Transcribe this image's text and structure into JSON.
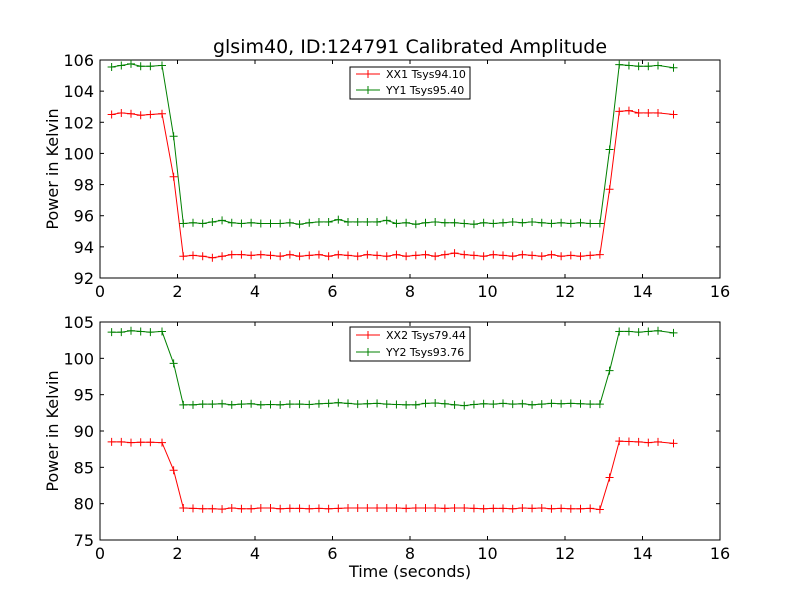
{
  "figure": {
    "background": "#ffffff"
  },
  "chart_data": [
    {
      "type": "line",
      "title": "glsim40, ID:124791 Calibrated Amplitude",
      "xlabel": "",
      "ylabel": "Power in Kelvin",
      "xlim": [
        0,
        16
      ],
      "ylim": [
        92,
        106
      ],
      "xticks": [
        0,
        2,
        4,
        6,
        8,
        10,
        12,
        14,
        16
      ],
      "yticks": [
        92,
        94,
        96,
        98,
        100,
        102,
        104,
        106
      ],
      "legend_position": "top-center",
      "x": [
        0.3,
        0.55,
        0.8,
        1.05,
        1.3,
        1.6,
        1.9,
        2.15,
        2.4,
        2.65,
        2.9,
        3.15,
        3.4,
        3.65,
        3.9,
        4.15,
        4.4,
        4.65,
        4.9,
        5.15,
        5.4,
        5.65,
        5.9,
        6.15,
        6.4,
        6.65,
        6.9,
        7.15,
        7.4,
        7.65,
        7.9,
        8.15,
        8.4,
        8.65,
        8.9,
        9.15,
        9.4,
        9.65,
        9.9,
        10.15,
        10.4,
        10.65,
        10.9,
        11.15,
        11.4,
        11.65,
        11.9,
        12.15,
        12.4,
        12.65,
        12.9,
        13.15,
        13.4,
        13.65,
        13.9,
        14.15,
        14.4,
        14.8
      ],
      "series": [
        {
          "name": "XX1 Tsys94.10",
          "color": "#ff0000",
          "values": [
            102.5,
            102.6,
            102.55,
            102.45,
            102.5,
            102.55,
            98.5,
            93.4,
            93.45,
            93.4,
            93.3,
            93.4,
            93.5,
            93.5,
            93.45,
            93.5,
            93.45,
            93.4,
            93.5,
            93.4,
            93.45,
            93.5,
            93.4,
            93.5,
            93.45,
            93.4,
            93.5,
            93.45,
            93.4,
            93.5,
            93.4,
            93.45,
            93.5,
            93.4,
            93.5,
            93.6,
            93.5,
            93.45,
            93.4,
            93.5,
            93.45,
            93.4,
            93.5,
            93.45,
            93.4,
            93.5,
            93.4,
            93.45,
            93.4,
            93.45,
            93.5,
            97.7,
            102.7,
            102.75,
            102.6,
            102.6,
            102.6,
            102.5
          ]
        },
        {
          "name": "YY1 Tsys95.40",
          "color": "#008000",
          "values": [
            105.55,
            105.65,
            105.75,
            105.6,
            105.6,
            105.65,
            101.1,
            95.5,
            95.55,
            95.5,
            95.6,
            95.7,
            95.55,
            95.5,
            95.55,
            95.5,
            95.5,
            95.5,
            95.55,
            95.45,
            95.55,
            95.6,
            95.6,
            95.75,
            95.6,
            95.6,
            95.6,
            95.6,
            95.7,
            95.5,
            95.55,
            95.45,
            95.55,
            95.6,
            95.55,
            95.55,
            95.5,
            95.45,
            95.55,
            95.5,
            95.55,
            95.6,
            95.55,
            95.6,
            95.55,
            95.5,
            95.55,
            95.5,
            95.55,
            95.5,
            95.5,
            100.25,
            105.7,
            105.65,
            105.6,
            105.6,
            105.65,
            105.5
          ]
        }
      ]
    },
    {
      "type": "line",
      "title": "",
      "xlabel": "Time (seconds)",
      "ylabel": "Power in Kelvin",
      "xlim": [
        0,
        16
      ],
      "ylim": [
        75,
        105
      ],
      "xticks": [
        0,
        2,
        4,
        6,
        8,
        10,
        12,
        14,
        16
      ],
      "yticks": [
        75,
        80,
        85,
        90,
        95,
        100,
        105
      ],
      "legend_position": "top-center",
      "x": [
        0.3,
        0.55,
        0.8,
        1.05,
        1.3,
        1.6,
        1.9,
        2.15,
        2.4,
        2.65,
        2.9,
        3.15,
        3.4,
        3.65,
        3.9,
        4.15,
        4.4,
        4.65,
        4.9,
        5.15,
        5.4,
        5.65,
        5.9,
        6.15,
        6.4,
        6.65,
        6.9,
        7.15,
        7.4,
        7.65,
        7.9,
        8.15,
        8.4,
        8.65,
        8.9,
        9.15,
        9.4,
        9.65,
        9.9,
        10.15,
        10.4,
        10.65,
        10.9,
        11.15,
        11.4,
        11.65,
        11.9,
        12.15,
        12.4,
        12.65,
        12.9,
        13.15,
        13.4,
        13.65,
        13.9,
        14.15,
        14.4,
        14.8
      ],
      "series": [
        {
          "name": "XX2 Tsys79.44",
          "color": "#ff0000",
          "values": [
            88.5,
            88.5,
            88.4,
            88.45,
            88.45,
            88.4,
            84.6,
            79.4,
            79.35,
            79.3,
            79.3,
            79.25,
            79.4,
            79.3,
            79.3,
            79.4,
            79.4,
            79.3,
            79.35,
            79.35,
            79.3,
            79.35,
            79.3,
            79.35,
            79.4,
            79.4,
            79.4,
            79.4,
            79.4,
            79.4,
            79.35,
            79.4,
            79.4,
            79.4,
            79.35,
            79.4,
            79.4,
            79.35,
            79.3,
            79.35,
            79.35,
            79.3,
            79.4,
            79.35,
            79.4,
            79.3,
            79.35,
            79.3,
            79.3,
            79.35,
            79.2,
            83.6,
            88.6,
            88.55,
            88.5,
            88.4,
            88.5,
            88.3
          ]
        },
        {
          "name": "YY2 Tsys93.76",
          "color": "#008000",
          "values": [
            103.6,
            103.6,
            103.8,
            103.7,
            103.6,
            103.7,
            99.3,
            93.6,
            93.6,
            93.7,
            93.7,
            93.75,
            93.6,
            93.7,
            93.75,
            93.6,
            93.65,
            93.6,
            93.7,
            93.7,
            93.65,
            93.75,
            93.8,
            93.9,
            93.8,
            93.7,
            93.75,
            93.8,
            93.7,
            93.65,
            93.6,
            93.6,
            93.8,
            93.85,
            93.75,
            93.6,
            93.5,
            93.65,
            93.75,
            93.7,
            93.8,
            93.7,
            93.75,
            93.6,
            93.7,
            93.8,
            93.75,
            93.8,
            93.75,
            93.7,
            93.7,
            98.3,
            103.7,
            103.7,
            103.6,
            103.7,
            103.8,
            103.5
          ]
        }
      ]
    }
  ]
}
